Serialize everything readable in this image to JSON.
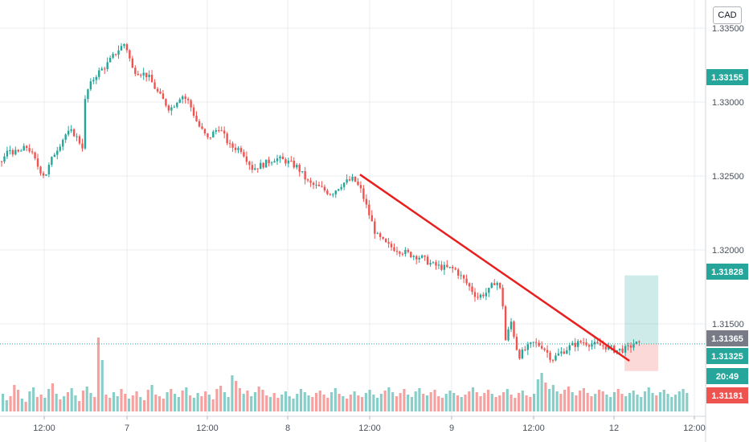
{
  "currency_badge": "CAD",
  "colors": {
    "up": "#26a69a",
    "down": "#ef5350",
    "trendline": "#e91e1e",
    "grid": "#e9ecf1",
    "tag_green": "#26a69a",
    "tag_red": "#ef5350",
    "tag_gray": "#787b86",
    "tag_darkgreen": "#089981"
  },
  "chart_data": {
    "type": "candlestick",
    "y_ticks": [
      "1.33500",
      "1.33000",
      "1.32500",
      "1.32000",
      "1.31500"
    ],
    "x_ticks": [
      "12:00",
      "7",
      "12:00",
      "8",
      "12:00",
      "9",
      "12:00",
      "12",
      "12:00"
    ],
    "price_tags": [
      {
        "label": "1.33155",
        "value": 1.33155,
        "style": "green"
      },
      {
        "label": "1.31828",
        "value": 1.31828,
        "style": "green"
      },
      {
        "label": "1.31365",
        "value": 1.31365,
        "style": "gray"
      },
      {
        "label": "1.31325",
        "value": 1.31325,
        "style": "green"
      },
      {
        "label": "20:49",
        "value": 1.31245,
        "style": "green"
      },
      {
        "label": "1.31181",
        "value": 1.31181,
        "style": "red"
      }
    ],
    "trendline": {
      "from": [
        0.4806,
        1.3251
      ],
      "to": [
        0.8403,
        1.3125
      ]
    },
    "position_box": {
      "x_start": 0.8339,
      "x_end": 0.8788,
      "target": 1.31828,
      "entry": 1.31365,
      "stop": 1.31181
    },
    "current_price": 1.31365,
    "price_path": [
      [
        0.0,
        1.326
      ],
      [
        0.01,
        1.3268
      ],
      [
        0.02,
        1.3265
      ],
      [
        0.035,
        1.327
      ],
      [
        0.05,
        1.3255
      ],
      [
        0.058,
        1.325
      ],
      [
        0.07,
        1.3265
      ],
      [
        0.085,
        1.3278
      ],
      [
        0.095,
        1.328
      ],
      [
        0.108,
        1.327
      ],
      [
        0.112,
        1.3305
      ],
      [
        0.125,
        1.3318
      ],
      [
        0.14,
        1.3325
      ],
      [
        0.155,
        1.3335
      ],
      [
        0.165,
        1.334
      ],
      [
        0.175,
        1.3322
      ],
      [
        0.195,
        1.3318
      ],
      [
        0.21,
        1.3305
      ],
      [
        0.225,
        1.3295
      ],
      [
        0.24,
        1.3305
      ],
      [
        0.25,
        1.33
      ],
      [
        0.262,
        1.3285
      ],
      [
        0.275,
        1.3275
      ],
      [
        0.29,
        1.3283
      ],
      [
        0.305,
        1.327
      ],
      [
        0.32,
        1.3268
      ],
      [
        0.335,
        1.3255
      ],
      [
        0.35,
        1.3258
      ],
      [
        0.365,
        1.3262
      ],
      [
        0.38,
        1.326
      ],
      [
        0.395,
        1.3256
      ],
      [
        0.41,
        1.3245
      ],
      [
        0.425,
        1.3242
      ],
      [
        0.44,
        1.3238
      ],
      [
        0.455,
        1.3245
      ],
      [
        0.47,
        1.3248
      ],
      [
        0.48,
        1.324
      ],
      [
        0.49,
        1.3225
      ],
      [
        0.5,
        1.321
      ],
      [
        0.515,
        1.3203
      ],
      [
        0.53,
        1.32
      ],
      [
        0.545,
        1.3197
      ],
      [
        0.56,
        1.3195
      ],
      [
        0.575,
        1.319
      ],
      [
        0.59,
        1.3188
      ],
      [
        0.605,
        1.3187
      ],
      [
        0.62,
        1.3178
      ],
      [
        0.635,
        1.3168
      ],
      [
        0.65,
        1.3172
      ],
      [
        0.66,
        1.318
      ],
      [
        0.668,
        1.317
      ],
      [
        0.673,
        1.3138
      ],
      [
        0.68,
        1.3152
      ],
      [
        0.69,
        1.3128
      ],
      [
        0.7,
        1.3133
      ],
      [
        0.71,
        1.3137
      ],
      [
        0.722,
        1.3135
      ],
      [
        0.735,
        1.3126
      ],
      [
        0.745,
        1.313
      ],
      [
        0.76,
        1.3135
      ],
      [
        0.775,
        1.3138
      ],
      [
        0.79,
        1.3136
      ],
      [
        0.805,
        1.3135
      ],
      [
        0.82,
        1.3132
      ],
      [
        0.835,
        1.3133
      ],
      [
        0.845,
        1.3137
      ],
      [
        0.855,
        1.3135
      ]
    ],
    "volume": [
      22,
      14,
      19,
      33,
      27,
      16,
      12,
      25,
      30,
      18,
      21,
      17,
      28,
      35,
      22,
      15,
      19,
      24,
      29,
      20,
      13,
      26,
      31,
      23,
      18,
      92,
      64,
      21,
      17,
      24,
      19,
      28,
      22,
      16,
      20,
      25,
      18,
      14,
      27,
      33,
      21,
      19,
      16,
      24,
      28,
      22,
      18,
      26,
      30,
      20,
      17,
      23,
      19,
      25,
      21,
      15,
      28,
      32,
      24,
      18,
      45,
      38,
      29,
      22,
      26,
      19,
      24,
      31,
      27,
      20,
      18,
      23,
      17,
      21,
      25,
      19,
      16,
      22,
      28,
      24,
      20,
      18,
      23,
      26,
      21,
      17,
      24,
      29,
      22,
      19,
      16,
      21,
      25,
      20,
      18,
      23,
      27,
      21,
      17,
      22,
      26,
      30,
      24,
      19,
      23,
      28,
      21,
      18,
      25,
      29,
      22,
      20,
      24,
      27,
      19,
      17,
      22,
      26,
      23,
      20,
      18,
      21,
      25,
      30,
      24,
      19,
      23,
      27,
      22,
      18,
      20,
      24,
      28,
      21,
      17,
      23,
      26,
      20,
      18,
      22,
      40,
      48,
      36,
      28,
      33,
      25,
      22,
      27,
      31,
      24,
      20,
      26,
      29,
      23,
      19,
      22,
      27,
      25,
      21,
      18,
      24,
      28,
      22,
      19,
      23,
      26,
      21,
      18,
      25,
      30,
      23,
      20,
      24,
      27,
      22,
      18,
      21,
      25,
      28,
      23
    ]
  }
}
